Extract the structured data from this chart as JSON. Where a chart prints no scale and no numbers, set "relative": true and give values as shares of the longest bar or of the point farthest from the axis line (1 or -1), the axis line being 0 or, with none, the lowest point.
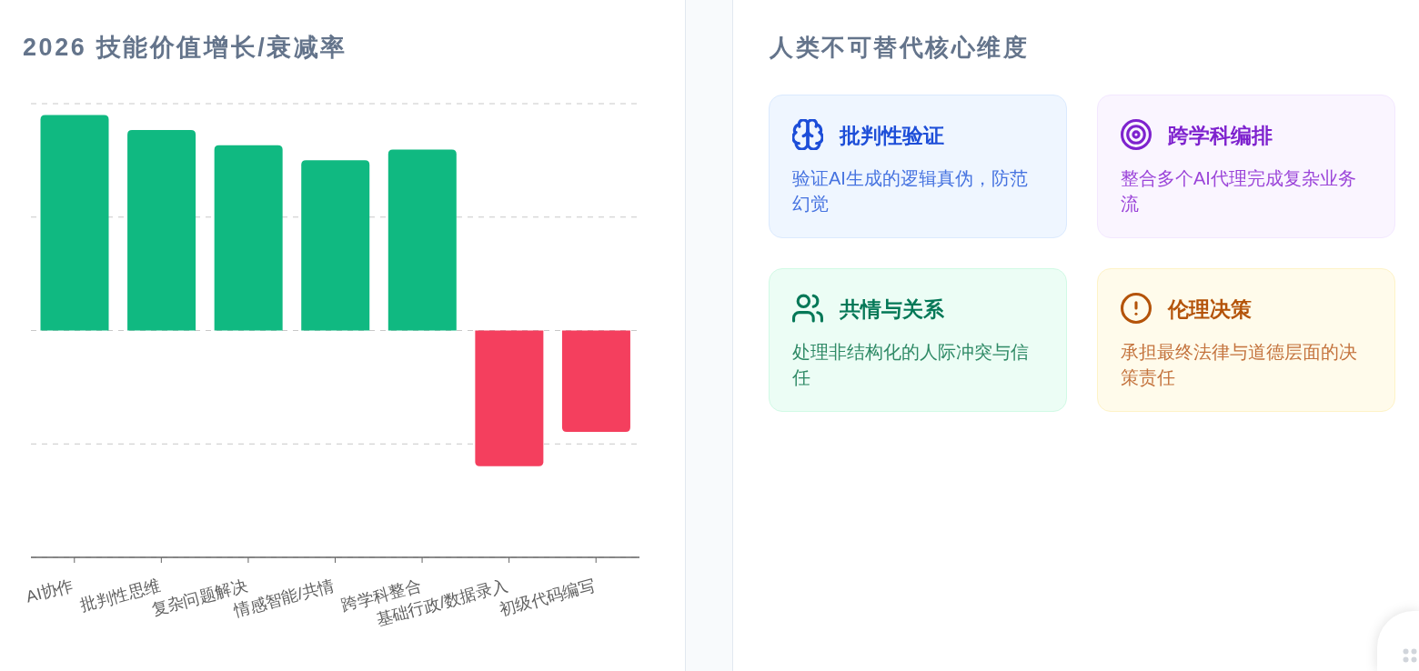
{
  "chart_data": [
    {
      "type": "bar",
      "title": "2026 技能价值增长/衰减率",
      "categories": [
        "AI协作",
        "批判性思维",
        "复杂问题解决",
        "情感智能/共情",
        "跨学科整合",
        "基础行政/数据录入",
        "初级代码编写"
      ],
      "values": [
        1,
        0.93,
        0.86,
        0.79,
        0.84,
        -0.63,
        -0.47
      ],
      "colors": [
        "#10b981",
        "#10b981",
        "#10b981",
        "#10b981",
        "#10b981",
        "#f43f5e",
        "#f43f5e"
      ],
      "relative": true,
      "grid": "y"
    },
    {
      "type": "other",
      "title": "人类不可替代核心维度",
      "annotations": [
        "批判性验证",
        "验证AI生成的逻辑真伪，防范幻觉",
        "跨学科编排",
        "整合多个AI代理完成复杂业务流",
        "共情与关系",
        "处理非结构化的人际冲突与信任",
        "伦理决策",
        "承担最终法律与道德层面的决策责任"
      ]
    }
  ]
}
